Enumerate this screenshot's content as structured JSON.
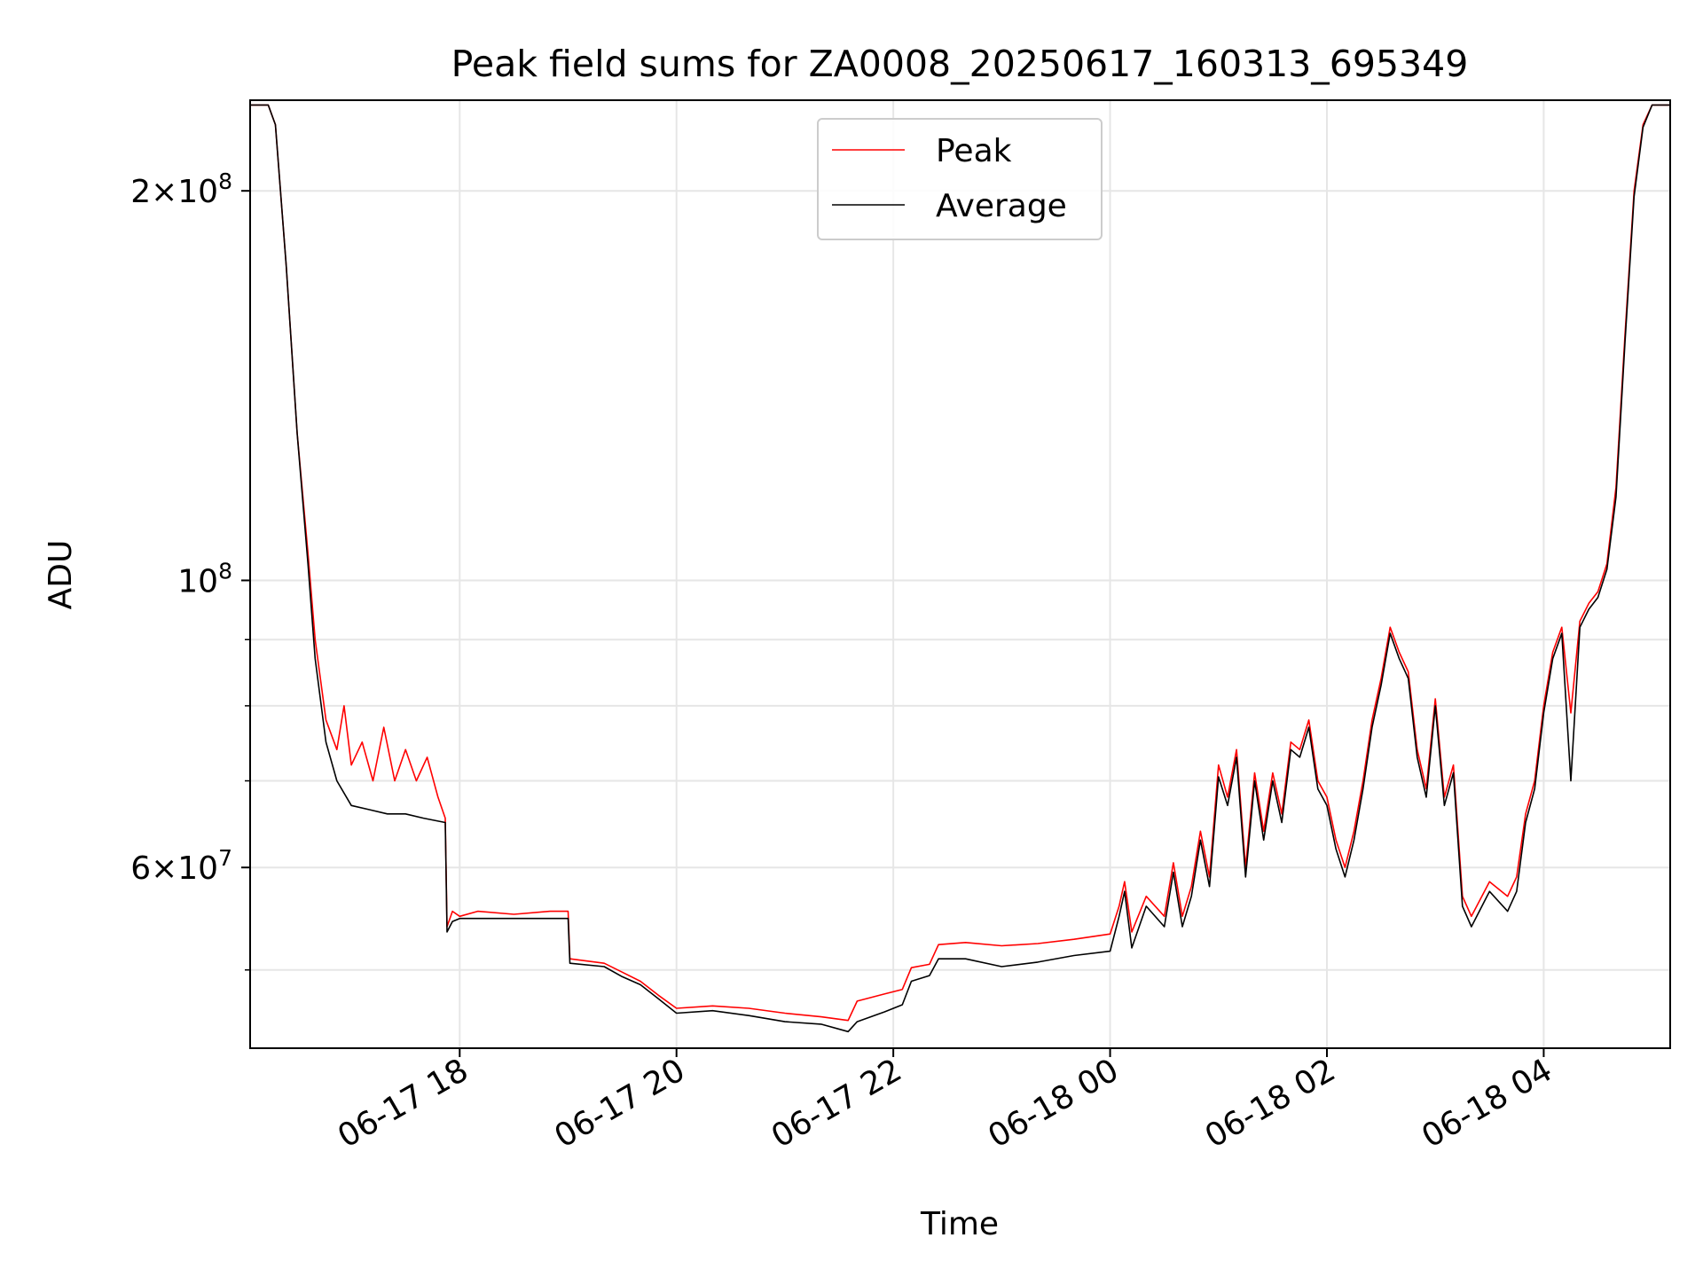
{
  "chart_data": {
    "type": "line",
    "title": "Peak field sums for ZA0008_20250617_160313_695349",
    "xlabel": "Time",
    "ylabel": "ADU",
    "yscale": "log",
    "ylim": [
      43500000,
      235000000
    ],
    "xlim": [
      "2025-06-17 16:04",
      "2025-06-18 05:10"
    ],
    "grid": true,
    "legend_position": "top-center",
    "x_ticks": [
      {
        "value": "2025-06-17 18:00",
        "label": "06-17 18"
      },
      {
        "value": "2025-06-17 20:00",
        "label": "06-17 20"
      },
      {
        "value": "2025-06-17 22:00",
        "label": "06-17 22"
      },
      {
        "value": "2025-06-18 00:00",
        "label": "06-18 00"
      },
      {
        "value": "2025-06-18 02:00",
        "label": "06-18 02"
      },
      {
        "value": "2025-06-18 04:00",
        "label": "06-18 04"
      }
    ],
    "y_major_ticks": [
      {
        "value": 60000000,
        "mantissa": "6",
        "exponent": "7"
      },
      {
        "value": 100000000,
        "mantissa": "",
        "exponent": "8"
      },
      {
        "value": 200000000,
        "mantissa": "2",
        "exponent": "8"
      }
    ],
    "y_minor_ticks": [
      50000000,
      70000000,
      80000000,
      90000000
    ],
    "series": [
      {
        "name": "Peak",
        "color": "#ff0000",
        "points": [
          [
            "2025-06-17 16:04",
            233000000
          ],
          [
            "2025-06-17 16:14",
            233000000
          ],
          [
            "2025-06-17 16:18",
            225000000
          ],
          [
            "2025-06-17 16:24",
            175000000
          ],
          [
            "2025-06-17 16:30",
            130000000
          ],
          [
            "2025-06-17 16:36",
            105000000
          ],
          [
            "2025-06-17 16:40",
            90000000
          ],
          [
            "2025-06-17 16:46",
            78000000
          ],
          [
            "2025-06-17 16:52",
            74000000
          ],
          [
            "2025-06-17 16:56",
            80000000
          ],
          [
            "2025-06-17 17:00",
            72000000
          ],
          [
            "2025-06-17 17:06",
            75000000
          ],
          [
            "2025-06-17 17:12",
            70000000
          ],
          [
            "2025-06-17 17:18",
            77000000
          ],
          [
            "2025-06-17 17:24",
            70000000
          ],
          [
            "2025-06-17 17:30",
            74000000
          ],
          [
            "2025-06-17 17:36",
            70000000
          ],
          [
            "2025-06-17 17:42",
            73000000
          ],
          [
            "2025-06-17 17:48",
            68000000
          ],
          [
            "2025-06-17 17:52",
            65500000
          ],
          [
            "2025-06-17 17:53",
            54000000
          ],
          [
            "2025-06-17 17:56",
            55500000
          ],
          [
            "2025-06-17 18:00",
            55000000
          ],
          [
            "2025-06-17 18:10",
            55500000
          ],
          [
            "2025-06-17 18:30",
            55200000
          ],
          [
            "2025-06-17 18:50",
            55500000
          ],
          [
            "2025-06-17 19:00",
            55500000
          ],
          [
            "2025-06-17 19:01",
            51000000
          ],
          [
            "2025-06-17 19:20",
            50600000
          ],
          [
            "2025-06-17 19:30",
            49800000
          ],
          [
            "2025-06-17 19:40",
            49000000
          ],
          [
            "2025-06-17 19:50",
            47800000
          ],
          [
            "2025-06-17 20:00",
            46700000
          ],
          [
            "2025-06-17 20:20",
            46900000
          ],
          [
            "2025-06-17 20:40",
            46700000
          ],
          [
            "2025-06-17 21:00",
            46300000
          ],
          [
            "2025-06-17 21:20",
            46000000
          ],
          [
            "2025-06-17 21:35",
            45700000
          ],
          [
            "2025-06-17 21:40",
            47300000
          ],
          [
            "2025-06-17 21:55",
            47900000
          ],
          [
            "2025-06-17 22:05",
            48300000
          ],
          [
            "2025-06-17 22:10",
            50200000
          ],
          [
            "2025-06-17 22:20",
            50500000
          ],
          [
            "2025-06-17 22:25",
            52300000
          ],
          [
            "2025-06-17 22:40",
            52500000
          ],
          [
            "2025-06-17 23:00",
            52200000
          ],
          [
            "2025-06-17 23:20",
            52400000
          ],
          [
            "2025-06-17 23:40",
            52800000
          ],
          [
            "2025-06-18 00:00",
            53300000
          ],
          [
            "2025-06-18 00:05",
            56000000
          ],
          [
            "2025-06-18 00:08",
            58500000
          ],
          [
            "2025-06-18 00:12",
            53500000
          ],
          [
            "2025-06-18 00:20",
            57000000
          ],
          [
            "2025-06-18 00:30",
            55000000
          ],
          [
            "2025-06-18 00:35",
            60500000
          ],
          [
            "2025-06-18 00:40",
            55000000
          ],
          [
            "2025-06-18 00:45",
            58000000
          ],
          [
            "2025-06-18 00:50",
            64000000
          ],
          [
            "2025-06-18 00:55",
            59000000
          ],
          [
            "2025-06-18 01:00",
            72000000
          ],
          [
            "2025-06-18 01:05",
            68000000
          ],
          [
            "2025-06-18 01:10",
            74000000
          ],
          [
            "2025-06-18 01:15",
            60000000
          ],
          [
            "2025-06-18 01:20",
            71000000
          ],
          [
            "2025-06-18 01:25",
            64000000
          ],
          [
            "2025-06-18 01:30",
            71000000
          ],
          [
            "2025-06-18 01:35",
            66000000
          ],
          [
            "2025-06-18 01:40",
            75000000
          ],
          [
            "2025-06-18 01:45",
            74000000
          ],
          [
            "2025-06-18 01:50",
            78000000
          ],
          [
            "2025-06-18 01:55",
            70000000
          ],
          [
            "2025-06-18 02:00",
            68000000
          ],
          [
            "2025-06-18 02:05",
            63000000
          ],
          [
            "2025-06-18 02:10",
            60000000
          ],
          [
            "2025-06-18 02:15",
            64000000
          ],
          [
            "2025-06-18 02:20",
            70000000
          ],
          [
            "2025-06-18 02:25",
            78000000
          ],
          [
            "2025-06-18 02:30",
            84000000
          ],
          [
            "2025-06-18 02:35",
            92000000
          ],
          [
            "2025-06-18 02:40",
            88000000
          ],
          [
            "2025-06-18 02:45",
            85000000
          ],
          [
            "2025-06-18 02:50",
            74000000
          ],
          [
            "2025-06-18 02:55",
            69000000
          ],
          [
            "2025-06-18 03:00",
            81000000
          ],
          [
            "2025-06-18 03:05",
            68000000
          ],
          [
            "2025-06-18 03:10",
            72000000
          ],
          [
            "2025-06-18 03:15",
            57000000
          ],
          [
            "2025-06-18 03:20",
            55000000
          ],
          [
            "2025-06-18 03:30",
            58500000
          ],
          [
            "2025-06-18 03:40",
            57000000
          ],
          [
            "2025-06-18 03:45",
            59000000
          ],
          [
            "2025-06-18 03:50",
            66000000
          ],
          [
            "2025-06-18 03:55",
            70000000
          ],
          [
            "2025-06-18 04:00",
            80000000
          ],
          [
            "2025-06-18 04:05",
            88000000
          ],
          [
            "2025-06-18 04:10",
            92000000
          ],
          [
            "2025-06-18 04:15",
            79000000
          ],
          [
            "2025-06-18 04:20",
            93000000
          ],
          [
            "2025-06-18 04:25",
            96000000
          ],
          [
            "2025-06-18 04:30",
            98000000
          ],
          [
            "2025-06-18 04:35",
            103000000
          ],
          [
            "2025-06-18 04:40",
            118000000
          ],
          [
            "2025-06-18 04:45",
            155000000
          ],
          [
            "2025-06-18 04:50",
            200000000
          ],
          [
            "2025-06-18 04:55",
            225000000
          ],
          [
            "2025-06-18 05:00",
            233000000
          ],
          [
            "2025-06-18 05:10",
            233000000
          ]
        ]
      },
      {
        "name": "Average",
        "color": "#000000",
        "points": [
          [
            "2025-06-17 16:04",
            233000000
          ],
          [
            "2025-06-17 16:14",
            233000000
          ],
          [
            "2025-06-17 16:18",
            225000000
          ],
          [
            "2025-06-17 16:24",
            175000000
          ],
          [
            "2025-06-17 16:30",
            130000000
          ],
          [
            "2025-06-17 16:36",
            103000000
          ],
          [
            "2025-06-17 16:40",
            87000000
          ],
          [
            "2025-06-17 16:46",
            75000000
          ],
          [
            "2025-06-17 16:52",
            70000000
          ],
          [
            "2025-06-17 17:00",
            67000000
          ],
          [
            "2025-06-17 17:10",
            66500000
          ],
          [
            "2025-06-17 17:20",
            66000000
          ],
          [
            "2025-06-17 17:30",
            66000000
          ],
          [
            "2025-06-17 17:40",
            65500000
          ],
          [
            "2025-06-17 17:52",
            65000000
          ],
          [
            "2025-06-17 17:53",
            53500000
          ],
          [
            "2025-06-17 17:56",
            54500000
          ],
          [
            "2025-06-17 18:00",
            54800000
          ],
          [
            "2025-06-17 18:30",
            54800000
          ],
          [
            "2025-06-17 19:00",
            54800000
          ],
          [
            "2025-06-17 19:01",
            50600000
          ],
          [
            "2025-06-17 19:20",
            50300000
          ],
          [
            "2025-06-17 19:30",
            49400000
          ],
          [
            "2025-06-17 19:40",
            48700000
          ],
          [
            "2025-06-17 19:50",
            47500000
          ],
          [
            "2025-06-17 20:00",
            46300000
          ],
          [
            "2025-06-17 20:20",
            46500000
          ],
          [
            "2025-06-17 20:40",
            46100000
          ],
          [
            "2025-06-17 21:00",
            45600000
          ],
          [
            "2025-06-17 21:20",
            45400000
          ],
          [
            "2025-06-17 21:35",
            44800000
          ],
          [
            "2025-06-17 21:40",
            45600000
          ],
          [
            "2025-06-17 21:55",
            46400000
          ],
          [
            "2025-06-17 22:05",
            47000000
          ],
          [
            "2025-06-17 22:10",
            49000000
          ],
          [
            "2025-06-17 22:20",
            49500000
          ],
          [
            "2025-06-17 22:25",
            51000000
          ],
          [
            "2025-06-17 22:40",
            51000000
          ],
          [
            "2025-06-17 23:00",
            50300000
          ],
          [
            "2025-06-17 23:20",
            50700000
          ],
          [
            "2025-06-17 23:40",
            51300000
          ],
          [
            "2025-06-18 00:00",
            51700000
          ],
          [
            "2025-06-18 00:05",
            55000000
          ],
          [
            "2025-06-18 00:08",
            57500000
          ],
          [
            "2025-06-18 00:12",
            52000000
          ],
          [
            "2025-06-18 00:20",
            56000000
          ],
          [
            "2025-06-18 00:30",
            54000000
          ],
          [
            "2025-06-18 00:35",
            59500000
          ],
          [
            "2025-06-18 00:40",
            54000000
          ],
          [
            "2025-06-18 00:45",
            57000000
          ],
          [
            "2025-06-18 00:50",
            63000000
          ],
          [
            "2025-06-18 00:55",
            58000000
          ],
          [
            "2025-06-18 01:00",
            70500000
          ],
          [
            "2025-06-18 01:05",
            67000000
          ],
          [
            "2025-06-18 01:10",
            73000000
          ],
          [
            "2025-06-18 01:15",
            59000000
          ],
          [
            "2025-06-18 01:20",
            70000000
          ],
          [
            "2025-06-18 01:25",
            63000000
          ],
          [
            "2025-06-18 01:30",
            70000000
          ],
          [
            "2025-06-18 01:35",
            65000000
          ],
          [
            "2025-06-18 01:40",
            74000000
          ],
          [
            "2025-06-18 01:45",
            73000000
          ],
          [
            "2025-06-18 01:50",
            77000000
          ],
          [
            "2025-06-18 01:55",
            69000000
          ],
          [
            "2025-06-18 02:00",
            67000000
          ],
          [
            "2025-06-18 02:05",
            62000000
          ],
          [
            "2025-06-18 02:10",
            59000000
          ],
          [
            "2025-06-18 02:15",
            63000000
          ],
          [
            "2025-06-18 02:20",
            69000000
          ],
          [
            "2025-06-18 02:25",
            77000000
          ],
          [
            "2025-06-18 02:30",
            83000000
          ],
          [
            "2025-06-18 02:35",
            91000000
          ],
          [
            "2025-06-18 02:40",
            87000000
          ],
          [
            "2025-06-18 02:45",
            84000000
          ],
          [
            "2025-06-18 02:50",
            73000000
          ],
          [
            "2025-06-18 02:55",
            68000000
          ],
          [
            "2025-06-18 03:00",
            80000000
          ],
          [
            "2025-06-18 03:05",
            67000000
          ],
          [
            "2025-06-18 03:10",
            71000000
          ],
          [
            "2025-06-18 03:15",
            56000000
          ],
          [
            "2025-06-18 03:20",
            54000000
          ],
          [
            "2025-06-18 03:30",
            57500000
          ],
          [
            "2025-06-18 03:40",
            55500000
          ],
          [
            "2025-06-18 03:45",
            57500000
          ],
          [
            "2025-06-18 03:50",
            65000000
          ],
          [
            "2025-06-18 03:55",
            69000000
          ],
          [
            "2025-06-18 04:00",
            79000000
          ],
          [
            "2025-06-18 04:05",
            87000000
          ],
          [
            "2025-06-18 04:10",
            91000000
          ],
          [
            "2025-06-18 04:15",
            70000000
          ],
          [
            "2025-06-18 04:20",
            92000000
          ],
          [
            "2025-06-18 04:25",
            95000000
          ],
          [
            "2025-06-18 04:30",
            97000000
          ],
          [
            "2025-06-18 04:35",
            102000000
          ],
          [
            "2025-06-18 04:40",
            116000000
          ],
          [
            "2025-06-18 04:45",
            153000000
          ],
          [
            "2025-06-18 04:50",
            198000000
          ],
          [
            "2025-06-18 04:55",
            224000000
          ],
          [
            "2025-06-18 05:00",
            233000000
          ],
          [
            "2025-06-18 05:10",
            233000000
          ]
        ]
      }
    ]
  }
}
